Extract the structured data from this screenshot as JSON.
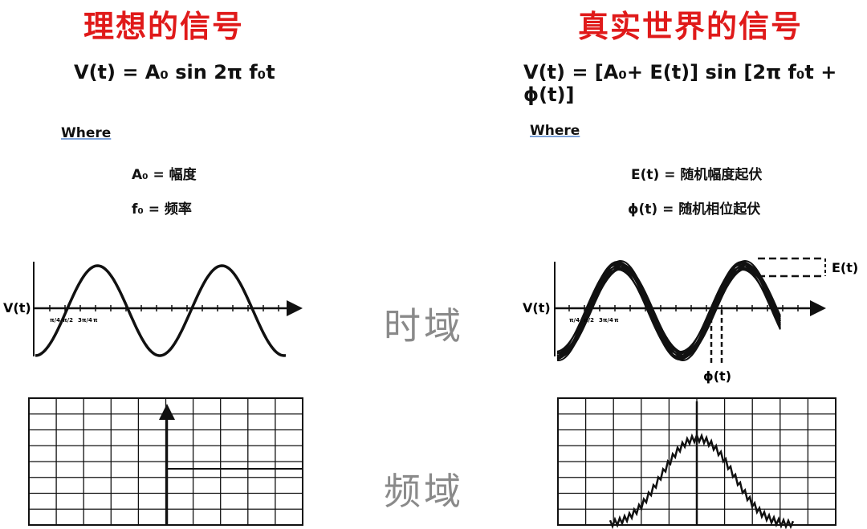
{
  "left": {
    "title": "理想的信号",
    "formula": "V(t) = A₀ sin 2π f₀t",
    "where": "Where",
    "defs": [
      "A₀ = 幅度",
      "f₀ = 频率"
    ],
    "y_label": "V(t)",
    "tick_labels": [
      "π/4",
      "π/2",
      "3π/4",
      "π"
    ]
  },
  "right": {
    "title": "真实世界的信号",
    "formula": "V(t) = [A₀+ E(t)] sin [2π f₀t + ϕ(t)]",
    "where": "Where",
    "defs": [
      "E(t) = 随机幅度起伏",
      "ϕ(t) = 随机相位起伏"
    ],
    "y_label": "V(t)",
    "amp_label": "E(t)",
    "phase_label": "ϕ(t)",
    "tick_labels": [
      "π/4",
      "π/2",
      "3π/4",
      "π"
    ]
  },
  "domains": {
    "time": "时域",
    "freq": "频域"
  },
  "colors": {
    "title": "#e01a1a",
    "domain": "#8a8a8a",
    "line": "#111111"
  }
}
